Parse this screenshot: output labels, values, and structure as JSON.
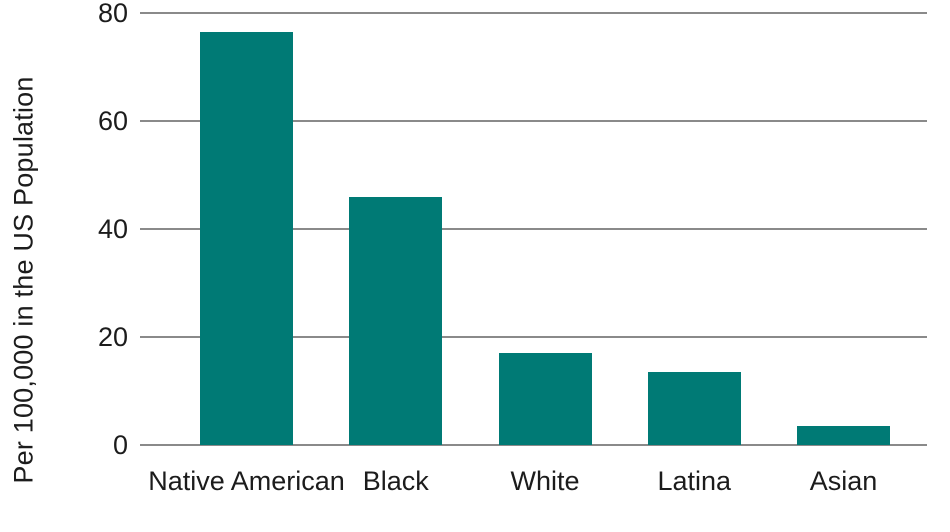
{
  "chart_data": {
    "type": "bar",
    "categories": [
      "Native American",
      "Black",
      "White",
      "Latina",
      "Asian"
    ],
    "values": [
      76.5,
      46,
      17,
      13.5,
      3.5
    ],
    "title": "",
    "xlabel": "",
    "ylabel": "Per 100,000 in the US Population",
    "ylim": [
      0,
      80
    ],
    "yticks": [
      0,
      20,
      40,
      60,
      80
    ],
    "grid": true,
    "legend": "none",
    "bar_color": "#007a75",
    "grid_color": "#8a8a8a",
    "text_color": "#1c1c1c",
    "background": "#ffffff"
  }
}
